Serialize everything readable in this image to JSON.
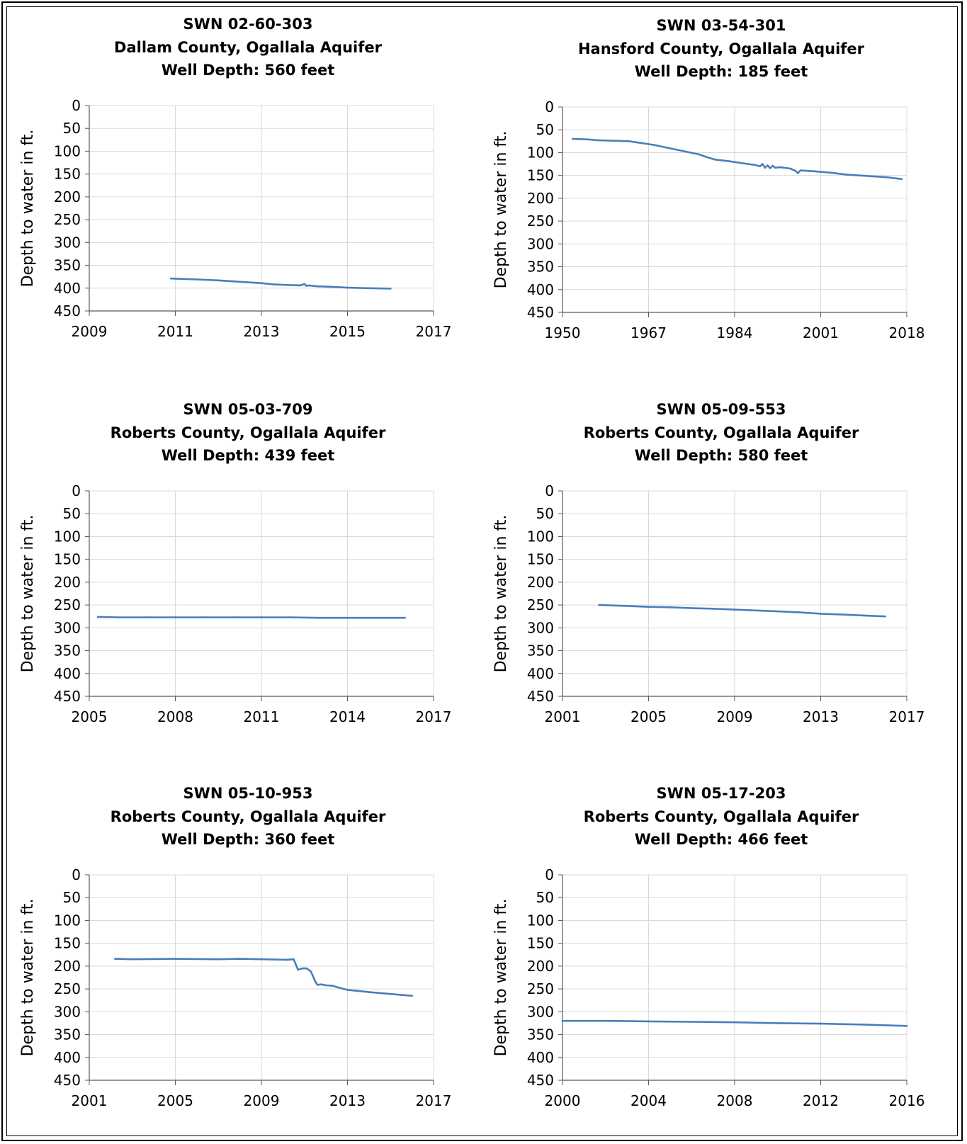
{
  "line_color": "#4a7ebb",
  "chart_data": [
    {
      "type": "line",
      "title": "SWN 02-60-303",
      "subtitle": "Dallam County, Ogallala Aquifer",
      "subtitle2": "Well Depth: 560 feet",
      "xlabel": "",
      "ylabel": "Depth to water in ft.",
      "xlim": [
        2009,
        2017
      ],
      "xticks": [
        "2009",
        "2011",
        "2013",
        "2015",
        "2017"
      ],
      "ylim": [
        0,
        450
      ],
      "yticks": [
        "0",
        "50",
        "100",
        "150",
        "200",
        "250",
        "300",
        "350",
        "400",
        "450"
      ],
      "y_inverted": true,
      "grid": true,
      "series": [
        {
          "x": [
            2010.9,
            2011.5,
            2012.0,
            2012.5,
            2013.0,
            2013.3,
            2013.6,
            2013.9,
            2014.0,
            2014.05,
            2014.1,
            2014.3,
            2014.6,
            2015.0,
            2015.5,
            2016.0
          ],
          "values": [
            379,
            381,
            383,
            386,
            389,
            392,
            393,
            394,
            391,
            395,
            394,
            396,
            397,
            399,
            400,
            401
          ]
        }
      ]
    },
    {
      "type": "line",
      "title": "SWN 03-54-301",
      "subtitle": "Hansford County, Ogallala Aquifer",
      "subtitle2": "Well Depth: 185 feet",
      "xlabel": "",
      "ylabel": "Depth to water in ft.",
      "xlim": [
        1950,
        2018
      ],
      "xticks": [
        "1950",
        "1967",
        "1984",
        "2001",
        "2018"
      ],
      "ylim": [
        0,
        450
      ],
      "yticks": [
        "0",
        "50",
        "100",
        "150",
        "200",
        "250",
        "300",
        "350",
        "400",
        "450"
      ],
      "y_inverted": true,
      "grid": true,
      "series": [
        {
          "x": [
            1952,
            1955,
            1957,
            1960,
            1963,
            1965,
            1968,
            1971,
            1974,
            1977,
            1978,
            1980,
            1983,
            1986,
            1988,
            1989,
            1989.5,
            1990,
            1990.5,
            1991,
            1991.5,
            1992,
            1993,
            1995,
            1996,
            1996.5,
            1997,
            2000,
            2003,
            2006,
            2010,
            2014,
            2017
          ],
          "values": [
            70,
            71,
            73,
            74,
            75,
            78,
            83,
            90,
            97,
            104,
            108,
            115,
            119,
            124,
            127,
            130,
            125,
            133,
            128,
            134,
            129,
            133,
            132,
            135,
            140,
            145,
            139,
            141,
            144,
            148,
            151,
            154,
            158
          ]
        }
      ]
    },
    {
      "type": "line",
      "title": "SWN 05-03-709",
      "subtitle": "Roberts County, Ogallala Aquifer",
      "subtitle2": "Well Depth: 439 feet",
      "xlabel": "",
      "ylabel": "Depth to water in ft.",
      "xlim": [
        2005,
        2017
      ],
      "xticks": [
        "2005",
        "2008",
        "2011",
        "2014",
        "2017"
      ],
      "ylim": [
        0,
        450
      ],
      "yticks": [
        "0",
        "50",
        "100",
        "150",
        "200",
        "250",
        "300",
        "350",
        "400",
        "450"
      ],
      "y_inverted": true,
      "grid": true,
      "series": [
        {
          "x": [
            2005.3,
            2006,
            2007,
            2008,
            2009,
            2010,
            2011,
            2012,
            2013,
            2014,
            2015,
            2016
          ],
          "values": [
            276,
            277,
            277,
            277,
            277,
            277,
            277,
            277,
            278,
            278,
            278,
            278
          ]
        }
      ]
    },
    {
      "type": "line",
      "title": "SWN 05-09-553",
      "subtitle": "Roberts County, Ogallala Aquifer",
      "subtitle2": "Well Depth: 580 feet",
      "xlabel": "",
      "ylabel": "Depth to water in ft.",
      "xlim": [
        2001,
        2017
      ],
      "xticks": [
        "2001",
        "2005",
        "2009",
        "2013",
        "2017"
      ],
      "ylim": [
        0,
        450
      ],
      "yticks": [
        "0",
        "50",
        "100",
        "150",
        "200",
        "250",
        "300",
        "350",
        "400",
        "450"
      ],
      "y_inverted": true,
      "grid": true,
      "series": [
        {
          "x": [
            2002.7,
            2004,
            2005,
            2006,
            2007,
            2008,
            2009,
            2010,
            2011,
            2012,
            2013,
            2014,
            2015,
            2016
          ],
          "values": [
            250,
            252,
            254,
            255,
            257,
            258,
            260,
            262,
            264,
            266,
            269,
            271,
            273,
            275
          ]
        }
      ]
    },
    {
      "type": "line",
      "title": "SWN 05-10-953",
      "subtitle": "Roberts County, Ogallala Aquifer",
      "subtitle2": "Well Depth: 360 feet",
      "xlabel": "",
      "ylabel": "Depth to water in ft.",
      "xlim": [
        2001,
        2017
      ],
      "xticks": [
        "2001",
        "2005",
        "2009",
        "2013",
        "2017"
      ],
      "ylim": [
        0,
        450
      ],
      "yticks": [
        "0",
        "50",
        "100",
        "150",
        "200",
        "250",
        "300",
        "350",
        "400",
        "450"
      ],
      "y_inverted": true,
      "grid": true,
      "series": [
        {
          "x": [
            2002.2,
            2003,
            2005,
            2007,
            2008,
            2009,
            2010.2,
            2010.5,
            2010.7,
            2010.9,
            2011.1,
            2011.3,
            2011.5,
            2011.6,
            2011.8,
            2012,
            2012.3,
            2012.6,
            2013,
            2014,
            2015,
            2016
          ],
          "values": [
            184,
            185,
            184,
            185,
            184,
            185,
            186,
            185,
            208,
            205,
            205,
            212,
            233,
            241,
            240,
            242,
            243,
            247,
            252,
            257,
            261,
            265
          ]
        }
      ]
    },
    {
      "type": "line",
      "title": "SWN 05-17-203",
      "subtitle": "Roberts County, Ogallala Aquifer",
      "subtitle2": "Well Depth: 466 feet",
      "xlabel": "",
      "ylabel": "Depth to water in ft.",
      "xlim": [
        2000,
        2016
      ],
      "xticks": [
        "2000",
        "2004",
        "2008",
        "2012",
        "2016"
      ],
      "ylim": [
        0,
        450
      ],
      "yticks": [
        "0",
        "50",
        "100",
        "150",
        "200",
        "250",
        "300",
        "350",
        "400",
        "450"
      ],
      "y_inverted": true,
      "grid": true,
      "series": [
        {
          "x": [
            2000,
            2002,
            2004,
            2006,
            2008,
            2010,
            2012,
            2014,
            2016
          ],
          "values": [
            320,
            320,
            321,
            322,
            323,
            325,
            326,
            328,
            331
          ]
        }
      ]
    }
  ]
}
